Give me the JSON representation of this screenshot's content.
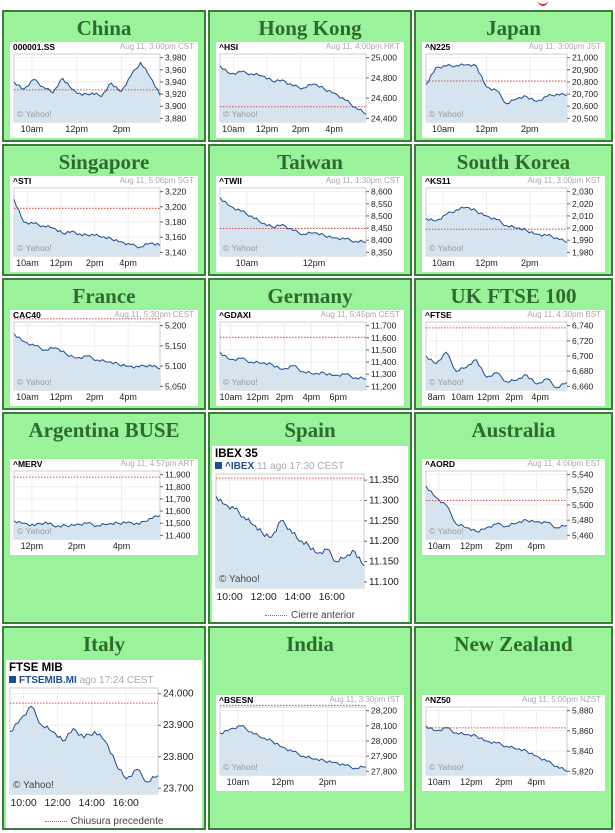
{
  "markets": [
    {
      "title": "China",
      "symbol": "000001.SS",
      "meta": "Aug 11, 3:00pm CST",
      "xticks": [
        "10am",
        "12pm",
        "2pm"
      ],
      "yticks": [
        "3,980",
        "3,960",
        "3,940",
        "3,920",
        "3,900",
        "3,880"
      ]
    },
    {
      "title": "Hong Kong",
      "symbol": "^HSI",
      "meta": "Aug 11, 4:00pm HKT",
      "xticks": [
        "10am",
        "12pm",
        "2pm",
        "4pm"
      ],
      "yticks": [
        "25,000",
        "24,800",
        "24,600",
        "24,400"
      ]
    },
    {
      "title": "Japan",
      "symbol": "^N225",
      "meta": "Aug 11, 3:00pm JST",
      "xticks": [
        "10am",
        "12pm",
        "2pm"
      ],
      "yticks": [
        "21,000",
        "20,900",
        "20,800",
        "20,700",
        "20,600",
        "20,500"
      ]
    },
    {
      "title": "Singapore",
      "symbol": "^STI",
      "meta": "Aug 11, 5:06pm SGT",
      "xticks": [
        "10am",
        "12pm",
        "2pm",
        "4pm"
      ],
      "yticks": [
        "3,220",
        "3,200",
        "3,180",
        "3,160",
        "3,140"
      ]
    },
    {
      "title": "Taiwan",
      "symbol": "^TWII",
      "meta": "Aug 11, 1:30pm CST",
      "xticks": [
        "10am",
        "12pm"
      ],
      "yticks": [
        "8,600",
        "8,550",
        "8,500",
        "8,450",
        "8,400",
        "8,350"
      ]
    },
    {
      "title": "South Korea",
      "symbol": "^KS11",
      "meta": "Aug 11, 3:00pm KST",
      "xticks": [
        "10am",
        "12pm",
        "2pm"
      ],
      "yticks": [
        "2,030",
        "2,020",
        "2,010",
        "2,000",
        "1,990",
        "1,980"
      ]
    },
    {
      "title": "France",
      "symbol": "CAC40",
      "meta": "Aug 11, 5:30pm CEST",
      "xticks": [
        "10am",
        "12pm",
        "2pm",
        "4pm"
      ],
      "yticks": [
        "5,200",
        "5,150",
        "5,100",
        "5,050"
      ]
    },
    {
      "title": "Germany",
      "symbol": "^GDAXI",
      "meta": "Aug 11, 5:45pm CEST",
      "xticks": [
        "10am",
        "12pm",
        "2pm",
        "4pm",
        "6pm"
      ],
      "yticks": [
        "11,700",
        "11,600",
        "11,500",
        "11,400",
        "11,300",
        "11,200"
      ]
    },
    {
      "title": "UK FTSE 100",
      "symbol": "^FTSE",
      "meta": "Aug 11, 4:30pm BST",
      "xticks": [
        "8am",
        "10am",
        "12pm",
        "2pm",
        "4pm"
      ],
      "yticks": [
        "6,740",
        "6,720",
        "6,700",
        "6,680",
        "6,660"
      ]
    },
    {
      "title": "Argentina BUSE",
      "symbol": "^MERV",
      "meta": "Aug 11, 4:57pm ART",
      "xticks": [
        "12pm",
        "2pm",
        "4pm"
      ],
      "yticks": [
        "11,900",
        "11,800",
        "11,700",
        "11,600",
        "11,500",
        "11,400"
      ]
    },
    {
      "title": "Spain",
      "symbol": "IBEX 35",
      "link": "^IBEX",
      "meta": "11 ago 17:30 CEST",
      "footer": "Cierre anterior",
      "xticks": [
        "10:00",
        "12:00",
        "14:00",
        "16:00"
      ],
      "yticks": [
        "11.350",
        "11.300",
        "11.250",
        "11.200",
        "11.150",
        "11.100"
      ]
    },
    {
      "title": "Australia",
      "symbol": "^AORD",
      "meta": "Aug 11, 4:00pm EST",
      "xticks": [
        "10am",
        "12pm",
        "2pm",
        "4pm"
      ],
      "yticks": [
        "5,540",
        "5,520",
        "5,500",
        "5,480",
        "5,460"
      ]
    },
    {
      "title": "Italy",
      "symbol": "FTSE MIB",
      "link": "FTSEMIB.MI",
      "meta": "ago 17:24 CEST",
      "footer": "Chiusura precedente",
      "xticks": [
        "10:00",
        "12:00",
        "14:00",
        "16:00"
      ],
      "yticks": [
        "24.000",
        "23.900",
        "23.800",
        "23.700"
      ]
    },
    {
      "title": "India",
      "symbol": "^BSESN",
      "meta": "Aug 11, 3:30pm IST",
      "xticks": [
        "10am",
        "12pm",
        "2pm"
      ],
      "yticks": [
        "28,200",
        "28,100",
        "28,000",
        "27,900",
        "27,800"
      ]
    },
    {
      "title": "New Zealand",
      "symbol": "^NZ50",
      "meta": "Aug 11, 5:00pm NZST",
      "xticks": [
        "10am",
        "12pm",
        "2pm",
        "4pm"
      ],
      "yticks": [
        "5,880",
        "5,860",
        "5,840",
        "5,820"
      ]
    }
  ],
  "watermark": "© Yahoo!",
  "colors": {
    "line": "#1f4e8c",
    "fill": "#d6e4f0",
    "prevclose": "#d05050",
    "cell": "#9af29a",
    "border": "#3d7a3d",
    "title": "#2e6b2e"
  },
  "chart_data": [
    {
      "type": "line",
      "title": "China",
      "yticks": [
        3980,
        3960,
        3940,
        3920,
        3900,
        3880
      ],
      "xlabels": [
        "10am",
        "12pm",
        "2pm"
      ],
      "prev_close": 3927,
      "values": [
        3940,
        3928,
        3944,
        3932,
        3922,
        3946,
        3928,
        3918,
        3922,
        3916,
        3938,
        3924,
        3950,
        3972,
        3948,
        3918
      ]
    },
    {
      "type": "line",
      "title": "Hong Kong",
      "yticks": [
        25000,
        24800,
        24600,
        24400
      ],
      "xlabels": [
        "10am",
        "12pm",
        "2pm",
        "4pm"
      ],
      "prev_close": 24515,
      "values": [
        24920,
        24840,
        24860,
        24840,
        24820,
        24770,
        24780,
        24720,
        24700,
        24740,
        24690,
        24650,
        24580,
        24510,
        24440
      ]
    },
    {
      "type": "line",
      "title": "Japan",
      "yticks": [
        21000,
        20900,
        20800,
        20700,
        20600,
        20500
      ],
      "xlabels": [
        "10am",
        "12pm",
        "2pm"
      ],
      "prev_close": 20808,
      "values": [
        20780,
        20920,
        20930,
        20935,
        20940,
        20930,
        20760,
        20730,
        20620,
        20660,
        20680,
        20640,
        20680,
        20700,
        20690
      ]
    },
    {
      "type": "line",
      "title": "Singapore",
      "yticks": [
        3220,
        3200,
        3180,
        3160,
        3140
      ],
      "xlabels": [
        "10am",
        "12pm",
        "2pm",
        "4pm"
      ],
      "prev_close": 3198,
      "values": [
        3210,
        3180,
        3178,
        3175,
        3172,
        3165,
        3168,
        3162,
        3164,
        3160,
        3158,
        3154,
        3150,
        3147,
        3152,
        3149
      ]
    },
    {
      "type": "line",
      "title": "Taiwan",
      "yticks": [
        8600,
        8550,
        8500,
        8450,
        8400,
        8350
      ],
      "xlabels": [
        "10am",
        "12pm"
      ],
      "prev_close": 8448,
      "values": [
        8575,
        8540,
        8520,
        8500,
        8470,
        8455,
        8465,
        8440,
        8425,
        8430,
        8420,
        8410,
        8405,
        8395,
        8392
      ]
    },
    {
      "type": "line",
      "title": "South Korea",
      "yticks": [
        2030,
        2020,
        2010,
        2000,
        1990,
        1980
      ],
      "xlabels": [
        "10am",
        "12pm",
        "2pm"
      ],
      "prev_close": 1999,
      "values": [
        2008,
        2006,
        2011,
        2015,
        2017,
        2014,
        2010,
        2007,
        2002,
        2000,
        1998,
        1995,
        1994,
        1992,
        1988
      ]
    },
    {
      "type": "line",
      "title": "France",
      "yticks": [
        5200,
        5150,
        5100,
        5050
      ],
      "xlabels": [
        "10am",
        "12pm",
        "2pm",
        "4pm"
      ],
      "prev_close": 5217,
      "values": [
        5180,
        5160,
        5150,
        5140,
        5145,
        5130,
        5120,
        5125,
        5115,
        5110,
        5105,
        5100,
        5098,
        5103,
        5093
      ]
    },
    {
      "type": "line",
      "title": "Germany",
      "yticks": [
        11700,
        11600,
        11500,
        11400,
        11300,
        11200
      ],
      "xlabels": [
        "10am",
        "12pm",
        "2pm",
        "4pm",
        "6pm"
      ],
      "prev_close": 11604,
      "values": [
        11480,
        11420,
        11430,
        11400,
        11390,
        11380,
        11340,
        11370,
        11320,
        11300,
        11310,
        11290,
        11300,
        11270,
        11260
      ]
    },
    {
      "type": "line",
      "title": "UK FTSE 100",
      "yticks": [
        6740,
        6720,
        6700,
        6680,
        6660
      ],
      "xlabels": [
        "8am",
        "10am",
        "12pm",
        "2pm",
        "4pm"
      ],
      "prev_close": 6737,
      "values": [
        6700,
        6690,
        6705,
        6680,
        6685,
        6695,
        6672,
        6678,
        6666,
        6668,
        6675,
        6663,
        6670,
        6658,
        6665
      ]
    },
    {
      "type": "line",
      "title": "Argentina BUSE",
      "yticks": [
        11900,
        11800,
        11700,
        11600,
        11500,
        11400
      ],
      "xlabels": [
        "12pm",
        "2pm",
        "4pm"
      ],
      "prev_close": 11880,
      "values": [
        11520,
        11500,
        11480,
        11510,
        11470,
        11480,
        11490,
        11500,
        11480,
        11490,
        11500,
        11510,
        11490,
        11540,
        11560
      ]
    },
    {
      "type": "line",
      "title": "Spain",
      "yticks": [
        11350,
        11300,
        11250,
        11200,
        11150,
        11100
      ],
      "xlabels": [
        "10:00",
        "12:00",
        "14:00",
        "16:00"
      ],
      "prev_close": 11355,
      "values": [
        11310,
        11290,
        11280,
        11260,
        11240,
        11220,
        11210,
        11250,
        11230,
        11200,
        11190,
        11170,
        11180,
        11150,
        11160,
        11175,
        11140
      ]
    },
    {
      "type": "line",
      "title": "Australia",
      "yticks": [
        5540,
        5520,
        5500,
        5480,
        5460
      ],
      "xlabels": [
        "10am",
        "12pm",
        "2pm",
        "4pm"
      ],
      "prev_close": 5506,
      "values": [
        5525,
        5510,
        5500,
        5475,
        5470,
        5465,
        5470,
        5475,
        5472,
        5476,
        5480,
        5478,
        5477,
        5470,
        5473
      ]
    },
    {
      "type": "line",
      "title": "Italy",
      "yticks": [
        24000,
        23900,
        23800,
        23700
      ],
      "xlabels": [
        "10:00",
        "12:00",
        "14:00",
        "16:00"
      ],
      "prev_close": 23970,
      "values": [
        23880,
        23920,
        23960,
        23900,
        23880,
        23850,
        23890,
        23860,
        23880,
        23850,
        23780,
        23730,
        23760,
        23720,
        23740
      ]
    },
    {
      "type": "line",
      "title": "India",
      "yticks": [
        28200,
        28100,
        28000,
        27900,
        27800
      ],
      "xlabels": [
        "10am",
        "12pm",
        "2pm"
      ],
      "prev_close": 28235,
      "values": [
        28050,
        28080,
        28100,
        28060,
        28020,
        28000,
        27960,
        27930,
        27900,
        27880,
        27870,
        27860,
        27840,
        27820,
        27830
      ]
    },
    {
      "type": "line",
      "title": "New Zealand",
      "yticks": [
        5880,
        5860,
        5840,
        5820
      ],
      "xlabels": [
        "10am",
        "12pm",
        "2pm",
        "4pm"
      ],
      "prev_close": 5863,
      "values": [
        5865,
        5860,
        5863,
        5858,
        5856,
        5855,
        5850,
        5848,
        5845,
        5842,
        5840,
        5835,
        5830,
        5825,
        5820
      ]
    }
  ]
}
